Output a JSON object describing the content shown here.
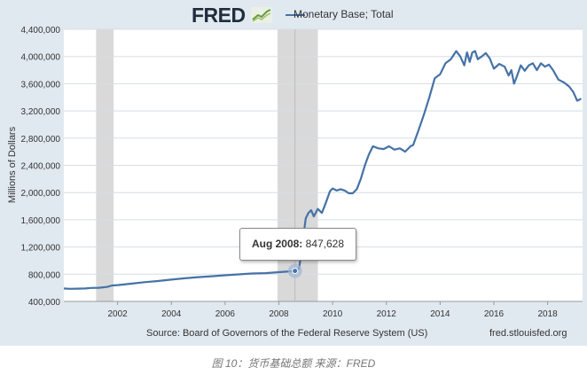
{
  "header": {
    "logo_text": "FRED",
    "series_title": "Monetary Base; Total"
  },
  "footer": {
    "source": "Source: Board of Governors of the Federal Reserve System (US)",
    "site": "fred.stlouisfed.org"
  },
  "caption": "图 10：货币基础总额 来源：FRED",
  "tooltip": {
    "date_label": "Aug 2008:",
    "value_label": "847,628"
  },
  "colors": {
    "line": "#4572a7",
    "recession": "#d9d9d9",
    "frame": "#e1e9f0"
  },
  "chart_data": {
    "type": "line",
    "title": "",
    "xlabel": "",
    "ylabel": "Millions of Dollars",
    "xlim": [
      2000.0,
      2019.3
    ],
    "ylim": [
      400000,
      4400000
    ],
    "y_ticks": [
      400000,
      800000,
      1200000,
      1600000,
      2000000,
      2400000,
      2800000,
      3200000,
      3600000,
      4000000,
      4400000
    ],
    "y_tick_labels": [
      "400,000",
      "800,000",
      "1,200,000",
      "1,600,000",
      "2,000,000",
      "2,400,000",
      "2,800,000",
      "3,200,000",
      "3,600,000",
      "4,000,000",
      "4,400,000"
    ],
    "x_ticks": [
      2002,
      2004,
      2006,
      2008,
      2010,
      2012,
      2014,
      2016,
      2018
    ],
    "x_tick_labels": [
      "2002",
      "2004",
      "2006",
      "2008",
      "2010",
      "2012",
      "2014",
      "2016",
      "2018"
    ],
    "grid": "horizontal",
    "recessions": [
      [
        2001.2,
        2001.85
      ],
      [
        2007.95,
        2009.45
      ]
    ],
    "highlight": {
      "x": 2008.6,
      "y": 847628,
      "label": "Aug 2008: 847,628"
    },
    "series": [
      {
        "name": "Monetary Base; Total",
        "x": [
          2000.0,
          2000.2,
          2000.5,
          2000.8,
          2001.0,
          2001.3,
          2001.6,
          2001.8,
          2002.0,
          2002.5,
          2003.0,
          2003.5,
          2004.0,
          2004.5,
          2005.0,
          2005.5,
          2006.0,
          2006.5,
          2007.0,
          2007.5,
          2008.0,
          2008.4,
          2008.6,
          2008.75,
          2008.85,
          2008.95,
          2009.0,
          2009.1,
          2009.2,
          2009.3,
          2009.45,
          2009.6,
          2009.75,
          2009.9,
          2010.0,
          2010.15,
          2010.3,
          2010.45,
          2010.6,
          2010.75,
          2010.9,
          2011.05,
          2011.2,
          2011.35,
          2011.5,
          2011.7,
          2011.9,
          2012.1,
          2012.3,
          2012.5,
          2012.7,
          2012.9,
          2013.0,
          2013.2,
          2013.4,
          2013.6,
          2013.8,
          2014.0,
          2014.2,
          2014.4,
          2014.6,
          2014.75,
          2014.9,
          2015.0,
          2015.1,
          2015.2,
          2015.3,
          2015.4,
          2015.55,
          2015.7,
          2015.85,
          2016.0,
          2016.2,
          2016.4,
          2016.55,
          2016.65,
          2016.75,
          2016.85,
          2017.0,
          2017.15,
          2017.3,
          2017.45,
          2017.6,
          2017.75,
          2017.9,
          2018.05,
          2018.2,
          2018.4,
          2018.6,
          2018.8,
          2018.95,
          2019.1,
          2019.25
        ],
        "values": [
          590000,
          585000,
          588000,
          590000,
          598000,
          600000,
          612000,
          635000,
          640000,
          660000,
          683000,
          700000,
          720000,
          740000,
          757000,
          770000,
          785000,
          797000,
          810000,
          815000,
          830000,
          842000,
          847628,
          880000,
          1150000,
          1470000,
          1620000,
          1700000,
          1740000,
          1650000,
          1760000,
          1700000,
          1850000,
          2020000,
          2060000,
          2030000,
          2050000,
          2030000,
          1990000,
          1990000,
          2050000,
          2200000,
          2400000,
          2560000,
          2680000,
          2650000,
          2640000,
          2680000,
          2630000,
          2650000,
          2600000,
          2680000,
          2700000,
          2920000,
          3150000,
          3400000,
          3680000,
          3740000,
          3900000,
          3960000,
          4080000,
          4000000,
          3870000,
          4060000,
          3920000,
          4060000,
          4080000,
          3960000,
          4000000,
          4050000,
          3970000,
          3820000,
          3890000,
          3850000,
          3720000,
          3800000,
          3600000,
          3700000,
          3870000,
          3790000,
          3870000,
          3900000,
          3800000,
          3900000,
          3850000,
          3880000,
          3800000,
          3660000,
          3620000,
          3560000,
          3480000,
          3350000,
          3380000
        ]
      }
    ]
  }
}
